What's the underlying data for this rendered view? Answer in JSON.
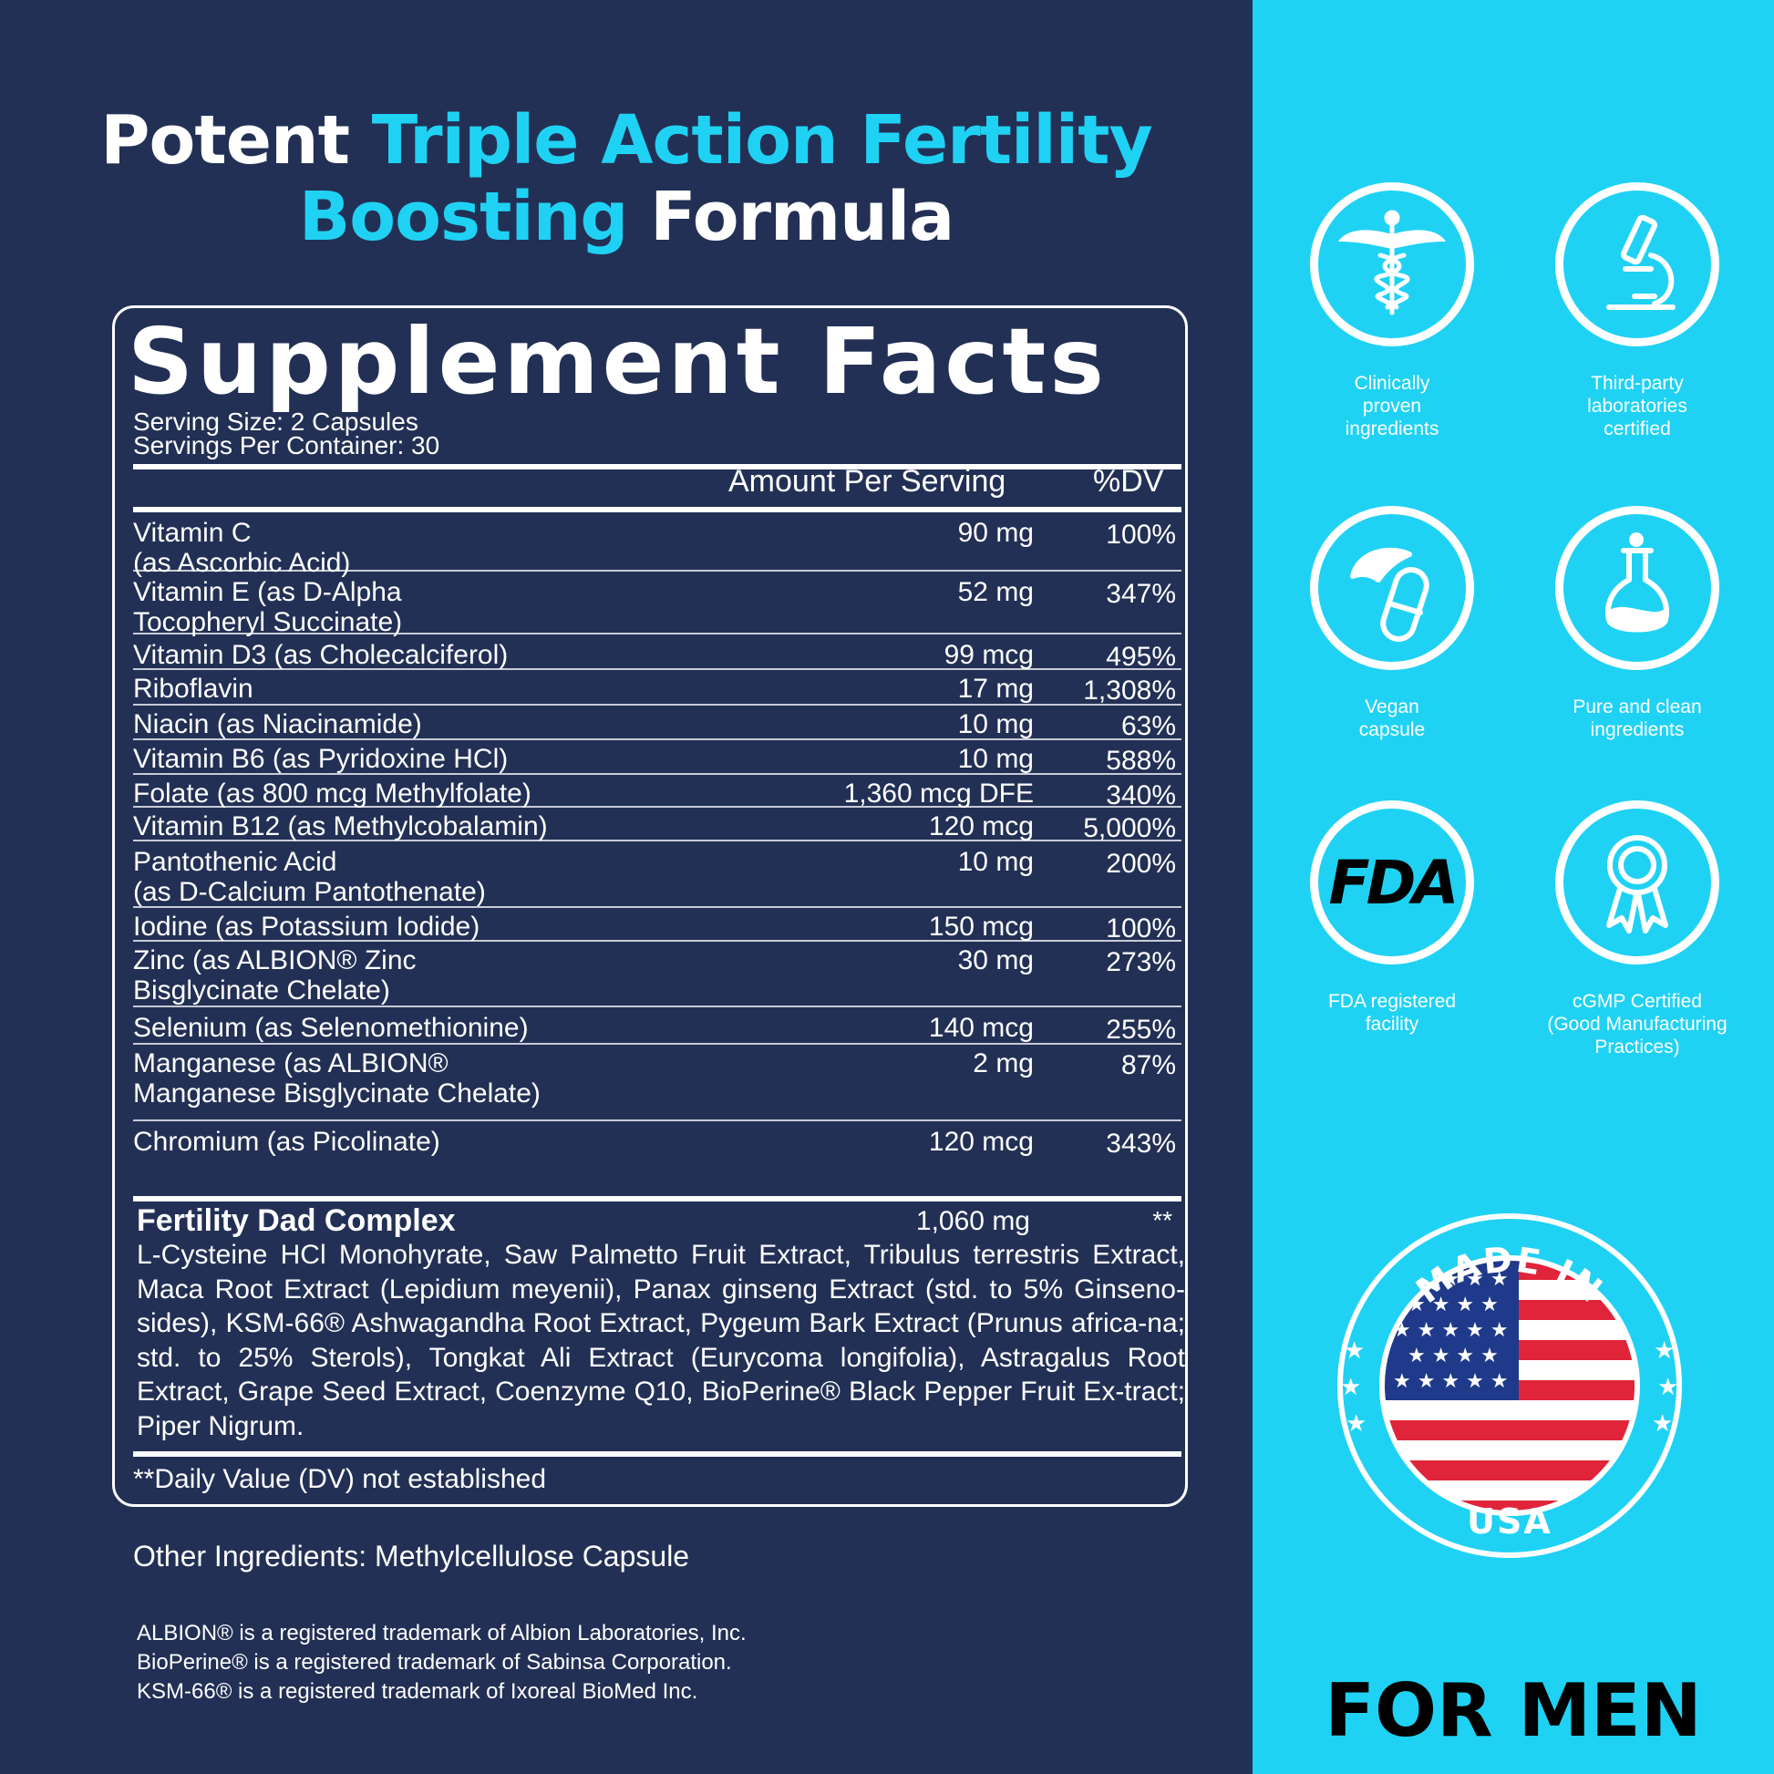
{
  "headline": {
    "line1_white": "Potent ",
    "line1_blue": "Triple Action Fertility",
    "line2_blue": "Boosting",
    "line2_white": " Formula"
  },
  "facts": {
    "title": "Supplement Facts",
    "serving_size": "Serving Size: 2 Capsules",
    "servings_per_container": "Servings Per Container: 30",
    "amount_header": "Amount Per Serving",
    "dv_header": "%DV",
    "rows": [
      {
        "name": "Vitamin C\n(as Ascorbic Acid)",
        "amount": "90 mg",
        "dv": "100%"
      },
      {
        "name": "Vitamin E (as D-Alpha\nTocopheryl Succinate)",
        "amount": "52 mg",
        "dv": "347%"
      },
      {
        "name": "Vitamin D3 (as Cholecalciferol)",
        "amount": "99 mcg",
        "dv": "495%"
      },
      {
        "name": "Riboflavin",
        "amount": "17 mg",
        "dv": "1,308%"
      },
      {
        "name": "Niacin (as Niacinamide)",
        "amount": "10 mg",
        "dv": "63%"
      },
      {
        "name": "Vitamin B6 (as Pyridoxine HCl)",
        "amount": "10 mg",
        "dv": "588%"
      },
      {
        "name": "Folate (as 800 mcg Methylfolate)",
        "amount": "1,360 mcg DFE",
        "dv": "340%"
      },
      {
        "name": "Vitamin B12 (as Methylcobalamin)",
        "amount": "120 mcg",
        "dv": "5,000%"
      },
      {
        "name": "Pantothenic Acid\n(as D-Calcium Pantothenate)",
        "amount": "10 mg",
        "dv": "200%"
      },
      {
        "name": "Iodine (as Potassium Iodide)",
        "amount": "150 mcg",
        "dv": "100%"
      },
      {
        "name": "Zinc (as ALBION® Zinc\nBisglycinate Chelate)",
        "amount": "30 mg",
        "dv": "273%"
      },
      {
        "name": "Selenium (as Selenomethionine)",
        "amount": "140 mcg",
        "dv": "255%"
      },
      {
        "name": "Manganese (as ALBION®\nManganese Bisglycinate Chelate)",
        "amount": "2 mg",
        "dv": "87%"
      },
      {
        "name": "Chromium (as Picolinate)",
        "amount": "120 mcg",
        "dv": "343%"
      }
    ],
    "complex": {
      "title": "Fertility Dad Complex",
      "amount": "1,060 mg",
      "dv": "**",
      "ingredients": "L-Cysteine HCl Monohyrate, Saw Palmetto Fruit Extract, Tribulus terrestris Extract, Maca Root Extract (Lepidium meyenii), Panax ginseng Extract (std. to 5% Ginseno-sides), KSM-66® Ashwagandha Root Extract, Pygeum Bark Extract (Prunus africa-na; std. to 25% Sterols), Tongkat Ali Extract (Eurycoma longifolia), Astragalus Root Extract, Grape Seed Extract, Coenzyme Q10, BioPerine® Black Pepper Fruit Ex-tract; Piper Nigrum."
    },
    "footnote": "**Daily Value (DV) not established"
  },
  "other_ingredients": "Other Ingredients: Methylcellulose Capsule",
  "trademarks": [
    "ALBION® is a registered trademark of Albion Laboratories, Inc.",
    "BioPerine® is a registered trademark of Sabinsa Corporation.",
    "KSM-66® is a registered trademark of Ixoreal BioMed Inc."
  ],
  "badges": [
    {
      "icon": "caduceus-icon",
      "label": "Clinically\nproven\ningredients"
    },
    {
      "icon": "microscope-icon",
      "label": "Third-party\nlaboratories\ncertified"
    },
    {
      "icon": "vegan-capsule-icon",
      "label": "Vegan\ncapsule"
    },
    {
      "icon": "flask-icon",
      "label": "Pure and clean\ningredients"
    },
    {
      "icon": "fda-icon",
      "label": "FDA registered\nfacility",
      "icon_text": "FDA"
    },
    {
      "icon": "award-ribbon-icon",
      "label": "cGMP Certified\n(Good Manufacturing\nPractices)"
    }
  ],
  "made_in": {
    "top_text": "MADE IN",
    "bottom_text": "USA"
  },
  "for_men": "FOR MEN",
  "colors": {
    "navy": "#233055",
    "cyan": "#1fd2f4",
    "flag_red": "#e0243a",
    "flag_blue": "#1f3a8a"
  }
}
